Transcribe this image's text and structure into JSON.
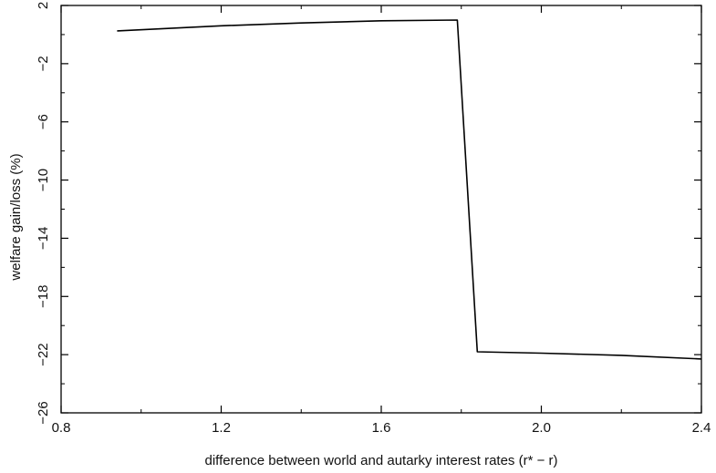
{
  "chart_data": {
    "type": "line",
    "title": "",
    "xlabel": "difference between world and autarky interest rates (r* − r)",
    "ylabel": "welfare gain/loss (%)",
    "xlim": [
      0.8,
      2.4
    ],
    "ylim": [
      -26,
      2
    ],
    "xticks": [
      0.8,
      1.2,
      1.6,
      2.0,
      2.4
    ],
    "xtick_labels": [
      "0.8",
      "1.2",
      "1.6",
      "2.0",
      "2.4"
    ],
    "yticks": [
      2,
      -2,
      -6,
      -10,
      -14,
      -18,
      -22,
      -26
    ],
    "ytick_labels": [
      "2",
      "−2",
      "−6",
      "−10",
      "−14",
      "−18",
      "−22",
      "−26"
    ],
    "grid": false,
    "series": [
      {
        "color": "#000000",
        "x": [
          0.94,
          1.2,
          1.4,
          1.6,
          1.79,
          1.84,
          2.0,
          2.2,
          2.4
        ],
        "y": [
          0.25,
          0.6,
          0.8,
          0.95,
          1.0,
          -21.8,
          -21.9,
          -22.05,
          -22.3
        ]
      }
    ]
  }
}
